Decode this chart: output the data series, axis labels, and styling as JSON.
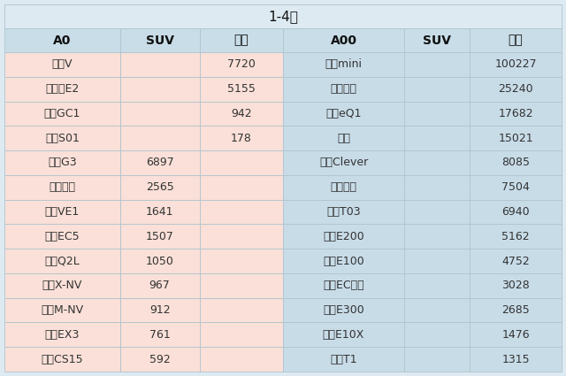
{
  "title": "1-4月",
  "header_left": [
    "A0",
    "SUV",
    "轿车"
  ],
  "header_right": [
    "A00",
    "SUV",
    "轿车"
  ],
  "rows_left": [
    [
      "哪吒V",
      "",
      "7720"
    ],
    [
      "比亚迪E2",
      "",
      "5155"
    ],
    [
      "智骏GC1",
      "",
      "942"
    ],
    [
      "零跑S01",
      "",
      "178"
    ],
    [
      "小鹏G3",
      "6897",
      ""
    ],
    [
      "比亚迪元",
      "2565",
      ""
    ],
    [
      "理念VE1",
      "1641",
      ""
    ],
    [
      "北汽EC5",
      "1507",
      ""
    ],
    [
      "奥迪Q2L",
      "1050",
      ""
    ],
    [
      "思铭X-NV",
      "967",
      ""
    ],
    [
      "本田M-NV",
      "912",
      ""
    ],
    [
      "北汽EX3",
      "761",
      ""
    ],
    [
      "长安CS15",
      "592",
      ""
    ]
  ],
  "rows_right": [
    [
      "宏光mini",
      "",
      "100227"
    ],
    [
      "欧拉黑猫",
      "",
      "25240"
    ],
    [
      "奇瑞eQ1",
      "",
      "17682"
    ],
    [
      "奔奔",
      "",
      "15021"
    ],
    [
      "上汽Clever",
      "",
      "8085"
    ],
    [
      "欧拉白猫",
      "",
      "7504"
    ],
    [
      "零跑T03",
      "",
      "6940"
    ],
    [
      "宝骏E200",
      "",
      "5162"
    ],
    [
      "宝骏E100",
      "",
      "4752"
    ],
    [
      "北汽EC系列",
      "",
      "3028"
    ],
    [
      "宝骏E300",
      "",
      "2685"
    ],
    [
      "思皓E10X",
      "",
      "1476"
    ],
    [
      "风行T1",
      "",
      "1315"
    ]
  ],
  "header_bg": "#c8dde8",
  "left_bg": "#fae0d8",
  "right_bg": "#c8dce8",
  "title_bg": "#ddeaf2",
  "outer_bg": "#ddeaf2",
  "border_color": "#b0c4cc",
  "text_color": "#333333",
  "header_text_color": "#111111",
  "title_fontsize": 11,
  "header_fontsize": 10,
  "data_fontsize": 9
}
